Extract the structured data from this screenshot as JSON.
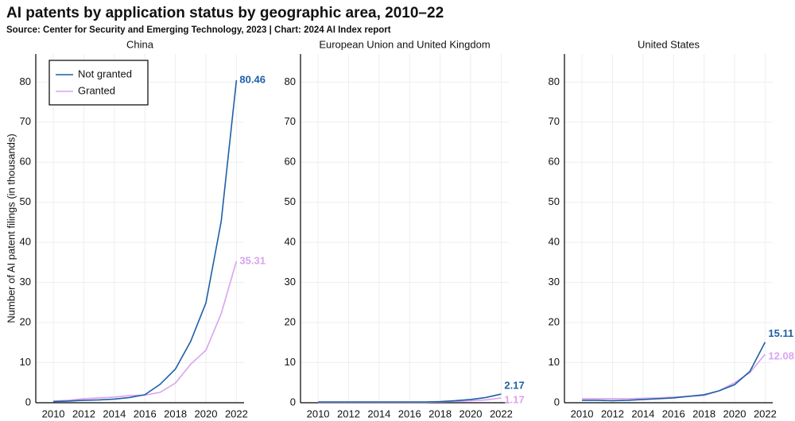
{
  "title": "AI patents by application status by geographic area, 2010–22",
  "source": "Source: Center for Security and Emerging Technology, 2023 | Chart: 2024 AI Index report",
  "chart_data": [
    {
      "type": "line",
      "title": "China",
      "ylabel": "Number of AI patent filings (in thousands)",
      "x": [
        2010,
        2011,
        2012,
        2013,
        2014,
        2015,
        2016,
        2017,
        2018,
        2019,
        2020,
        2021,
        2022
      ],
      "series": [
        {
          "name": "Not granted",
          "color": "#1f5fa6",
          "values": [
            0.3,
            0.4,
            0.6,
            0.7,
            0.9,
            1.3,
            2.0,
            4.6,
            8.4,
            15.3,
            24.9,
            45.2,
            80.46
          ]
        },
        {
          "name": "Granted",
          "color": "#d9a3f0",
          "values": [
            0.4,
            0.6,
            1.0,
            1.2,
            1.4,
            1.8,
            1.9,
            2.6,
            4.9,
            9.6,
            13.1,
            22.2,
            35.31
          ]
        }
      ],
      "xlim": [
        2008.85,
        2022.5
      ],
      "xticks": [
        2010,
        2012,
        2014,
        2016,
        2018,
        2020,
        2022
      ],
      "ylim": [
        0,
        87
      ],
      "yticks": [
        0,
        10,
        20,
        30,
        40,
        50,
        60,
        70,
        80
      ],
      "grid": true,
      "legend": "upper left"
    },
    {
      "type": "line",
      "title": "European Union and United Kingdom",
      "x": [
        2010,
        2011,
        2012,
        2013,
        2014,
        2015,
        2016,
        2017,
        2018,
        2019,
        2020,
        2021,
        2022
      ],
      "series": [
        {
          "color": "#1f5fa6",
          "values": [
            0.2,
            0.2,
            0.2,
            0.2,
            0.2,
            0.2,
            0.2,
            0.2,
            0.3,
            0.5,
            0.8,
            1.3,
            2.17
          ]
        },
        {
          "color": "#d9a3f0",
          "values": [
            0.1,
            0.1,
            0.1,
            0.1,
            0.1,
            0.1,
            0.1,
            0.1,
            0.2,
            0.3,
            0.5,
            0.7,
            1.17
          ]
        }
      ],
      "xlim": [
        2008.85,
        2022.5
      ],
      "xticks": [
        2010,
        2012,
        2014,
        2016,
        2018,
        2020,
        2022
      ],
      "ylim": [
        0,
        87
      ],
      "yticks": [
        0,
        10,
        20,
        30,
        40,
        50,
        60,
        70,
        80
      ],
      "grid": true
    },
    {
      "type": "line",
      "title": "United States",
      "x": [
        2010,
        2011,
        2012,
        2013,
        2014,
        2015,
        2016,
        2017,
        2018,
        2019,
        2020,
        2021,
        2022
      ],
      "series": [
        {
          "color": "#1f5fa6",
          "values": [
            0.6,
            0.6,
            0.5,
            0.6,
            0.8,
            1.0,
            1.2,
            1.6,
            2.0,
            3.0,
            4.5,
            7.8,
            15.11
          ]
        },
        {
          "color": "#d9a3f0",
          "values": [
            1.0,
            1.0,
            1.0,
            1.0,
            1.1,
            1.2,
            1.4,
            1.6,
            1.8,
            3.0,
            5.0,
            7.5,
            12.08
          ]
        }
      ],
      "xlim": [
        2008.85,
        2022.5
      ],
      "xticks": [
        2010,
        2012,
        2014,
        2016,
        2018,
        2020,
        2022
      ],
      "ylim": [
        0,
        87
      ],
      "yticks": [
        0,
        10,
        20,
        30,
        40,
        50,
        60,
        70,
        80
      ],
      "grid": true
    }
  ]
}
